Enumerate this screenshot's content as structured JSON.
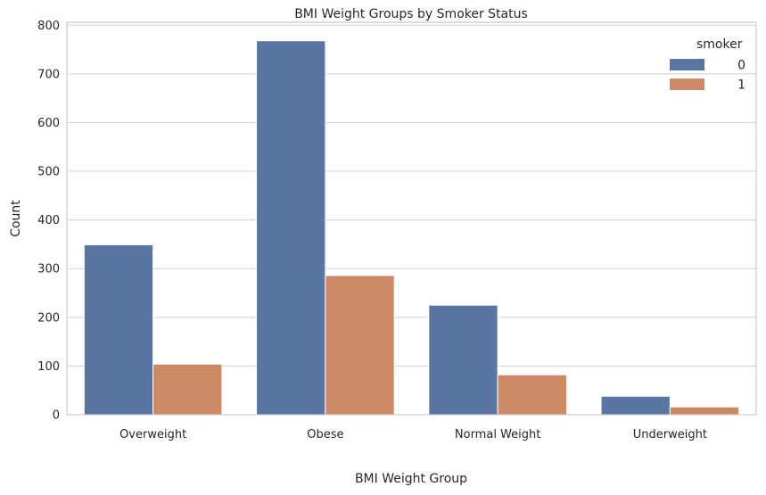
{
  "chart_data": {
    "type": "bar",
    "title": "BMI Weight Groups by Smoker Status",
    "xlabel": "BMI Weight Group",
    "ylabel": "Count",
    "categories": [
      "Overweight",
      "Obese",
      "Normal Weight",
      "Underweight"
    ],
    "series": [
      {
        "name": "0",
        "values": [
          349,
          768,
          225,
          38
        ],
        "color": "#5875a4"
      },
      {
        "name": "1",
        "values": [
          104,
          286,
          82,
          16
        ],
        "color": "#cc8963"
      }
    ],
    "ylim": [
      0,
      806
    ],
    "yticks": [
      0,
      100,
      200,
      300,
      400,
      500,
      600,
      700,
      800
    ],
    "grid": "horizontal",
    "legend": {
      "title": "smoker",
      "placement": "top-right"
    }
  }
}
